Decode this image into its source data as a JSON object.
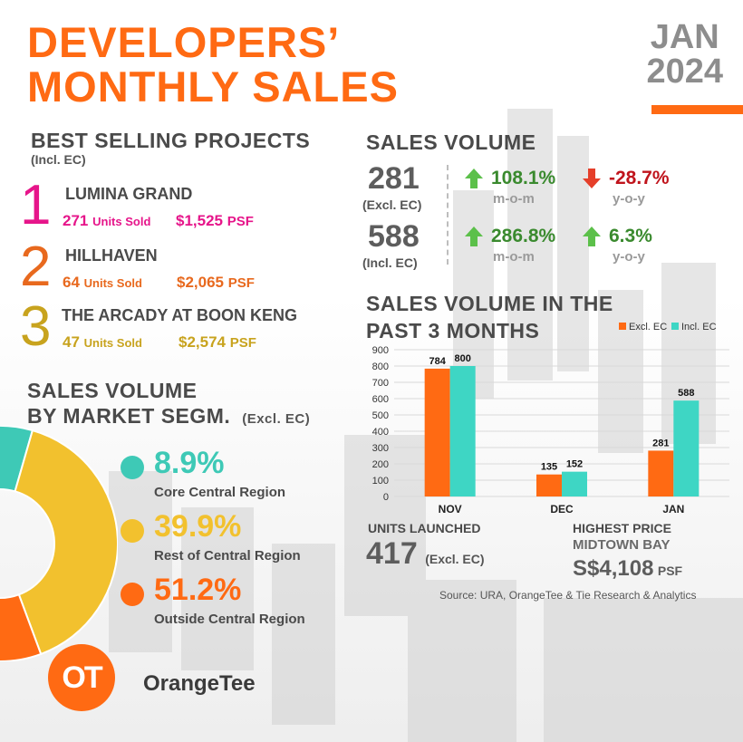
{
  "header": {
    "title_line1": "DEVELOPERS’",
    "title_line2": "MONTHLY SALES",
    "month": "JAN",
    "year": "2024"
  },
  "best_selling": {
    "heading": "BEST SELLING PROJECTS",
    "subheading": "(Incl. EC)",
    "projects": [
      {
        "rank": "1",
        "name": "LUMINA GRAND",
        "units": "271",
        "units_label": "Units Sold",
        "price": "$1,525",
        "price_unit": "PSF",
        "color": "#e6158a"
      },
      {
        "rank": "2",
        "name": "HILLHAVEN",
        "units": "64",
        "units_label": "Units Sold",
        "price": "$2,065",
        "price_unit": "PSF",
        "color": "#e8691e"
      },
      {
        "rank": "3",
        "name": "THE ARCADY AT BOON KENG",
        "units": "47",
        "units_label": "Units Sold",
        "price": "$2,574",
        "price_unit": "PSF",
        "color": "#c8a31e"
      }
    ]
  },
  "sales_volume": {
    "heading": "SALES VOLUME",
    "rows": [
      {
        "value": "281",
        "label": "(Excl. EC)",
        "mom": "108.1%",
        "mom_label": "m-o-m",
        "mom_dir": "up",
        "yoy": "-28.7%",
        "yoy_label": "y-o-y",
        "yoy_dir": "down"
      },
      {
        "value": "588",
        "label": "(Incl. EC)",
        "mom": "286.8%",
        "mom_label": "m-o-m",
        "mom_dir": "up",
        "yoy": "6.3%",
        "yoy_label": "y-o-y",
        "yoy_dir": "up"
      }
    ]
  },
  "segment": {
    "heading_line1": "SALES VOLUME",
    "heading_line2": "BY MARKET SEGM.",
    "heading_note": "(Excl. EC)",
    "items": [
      {
        "pct": "8.9%",
        "value": 8.9,
        "label": "Core Central Region",
        "color": "#3ec9b6"
      },
      {
        "pct": "39.9%",
        "value": 39.9,
        "label": "Rest of Central Region",
        "color": "#f2c12e"
      },
      {
        "pct": "51.2%",
        "value": 51.2,
        "label": "Outside Central Region",
        "color": "#ff6a13"
      }
    ]
  },
  "colors": {
    "orange": "#ff6a13",
    "teal": "#3ed6c4",
    "green": "#3a8a2e",
    "red": "#c0141c",
    "gray": "#8d8d8d"
  },
  "chart_data": {
    "type": "bar",
    "title_line1": "SALES VOLUME IN THE",
    "title_line2": "PAST 3 MONTHS",
    "categories": [
      "NOV",
      "DEC",
      "JAN"
    ],
    "series": [
      {
        "name": "Excl. EC",
        "values": [
          784,
          135,
          281
        ],
        "color": "#ff6a13"
      },
      {
        "name": "Incl. EC",
        "values": [
          800,
          152,
          588
        ],
        "color": "#3ed6c4"
      }
    ],
    "yticks": [
      0,
      100,
      200,
      300,
      400,
      500,
      600,
      700,
      800,
      900
    ],
    "ylim": [
      0,
      900
    ],
    "grid": true,
    "legend": "top-right",
    "xlabel": "",
    "ylabel": ""
  },
  "units_launched": {
    "label": "UNITS LAUNCHED",
    "value": "417",
    "note": "(Excl. EC)"
  },
  "highest_price": {
    "label": "HIGHEST PRICE",
    "project": "MIDTOWN BAY",
    "price": "S$4,108",
    "unit": "PSF"
  },
  "source": "Source: URA, OrangeTee & Tie Research & Analytics",
  "brand": {
    "logo_letters": "OT",
    "name": "OrangeTee"
  }
}
